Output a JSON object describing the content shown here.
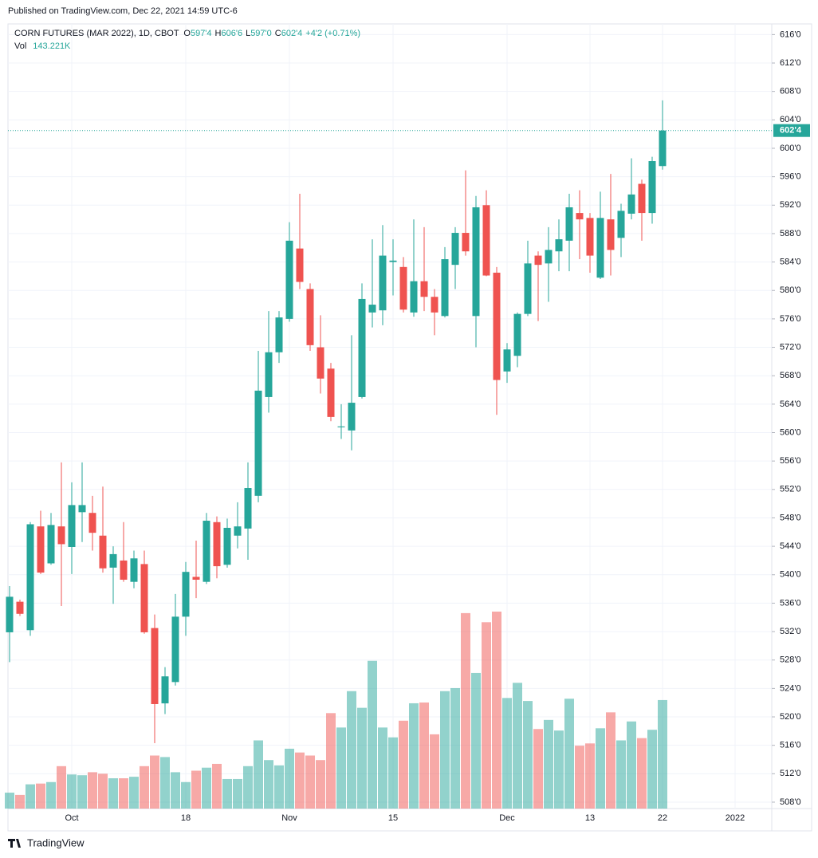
{
  "chart_data": {
    "type": "candlestick",
    "published": "Published on TradingView.com, Dec 22, 2021 14:59 UTC-6",
    "legend": {
      "symbol": "CORN FUTURES (MAR 2022), 1D, CBOT",
      "items": [
        {
          "key": "O",
          "label": "597'4"
        },
        {
          "key": "H",
          "label": "606'6"
        },
        {
          "key": "L",
          "label": "597'0"
        },
        {
          "key": "C",
          "label": "602'4"
        }
      ],
      "change": "+4'2 (+0.71%)"
    },
    "volume_title": "Vol",
    "volume_last_label": "143.221K",
    "brand": "TradingView",
    "up_color": "#26a69a",
    "down_color": "#ef5350",
    "grid": true,
    "categories": [
      null,
      null,
      null,
      null,
      null,
      null,
      "Oct",
      null,
      null,
      null,
      null,
      null,
      null,
      null,
      null,
      null,
      null,
      "18",
      null,
      null,
      null,
      null,
      null,
      null,
      null,
      null,
      null,
      "Nov",
      null,
      null,
      null,
      null,
      null,
      null,
      null,
      null,
      null,
      "15",
      null,
      null,
      null,
      null,
      null,
      null,
      null,
      null,
      null,
      null,
      "Dec",
      null,
      null,
      null,
      null,
      null,
      null,
      null,
      "13",
      null,
      null,
      null,
      null,
      null,
      null,
      "22"
    ],
    "future_label": "2022",
    "open": [
      531.9,
      536.2,
      532.2,
      546.8,
      541.6,
      546.8,
      543.9,
      548.8,
      548.7,
      545.5,
      541.0,
      542.0,
      539.0,
      541.5,
      532.5,
      521.9,
      524.9,
      534.1,
      539.7,
      539.0,
      547.4,
      541.4,
      545.5,
      546.5,
      551.1,
      565.0,
      571.3,
      576.0,
      585.9,
      580.2,
      572.0,
      569.0,
      560.75,
      560.3,
      565.0,
      576.9,
      577.2,
      584.0,
      583.3,
      576.9,
      581.3,
      579.1,
      576.4,
      583.6,
      588.1,
      576.4,
      592.0,
      582.5,
      568.6,
      570.8,
      576.7,
      584.9,
      583.8,
      585.5,
      587.0,
      590.9,
      590.2,
      581.8,
      590.0,
      587.4,
      590.8,
      595.0,
      590.9,
      597.5
    ],
    "high": [
      538.4,
      536.5,
      547.4,
      549.0,
      548.7,
      555.8,
      553.0,
      555.8,
      551.1,
      552.4,
      544.0,
      547.4,
      543.4,
      543.4,
      534.4,
      527.0,
      537.3,
      541.8,
      544.8,
      548.7,
      548.2,
      547.9,
      550.2,
      555.8,
      571.5,
      577.1,
      577.1,
      589.6,
      593.6,
      581.0,
      576.5,
      569.8,
      564.0,
      573.7,
      581.0,
      587.2,
      589.2,
      587.2,
      584.7,
      590.0,
      588.9,
      580.2,
      586.1,
      588.9,
      596.9,
      593.3,
      594.1,
      583.3,
      572.6,
      576.9,
      587.0,
      585.5,
      588.9,
      590.0,
      593.6,
      594.1,
      590.9,
      593.9,
      596.4,
      592.2,
      598.6,
      595.6,
      598.8,
      606.75
    ],
    "low": [
      527.7,
      534.2,
      531.4,
      540.1,
      541.4,
      535.6,
      540.1,
      544.6,
      543.4,
      540.3,
      535.9,
      539.0,
      538.1,
      531.7,
      516.3,
      520.4,
      524.4,
      531.4,
      536.7,
      538.7,
      539.5,
      541.0,
      543.7,
      542.1,
      550.2,
      562.8,
      569.8,
      575.6,
      580.2,
      571.5,
      565.5,
      561.6,
      559.1,
      557.5,
      564.8,
      574.8,
      575.1,
      579.3,
      576.9,
      576.3,
      577.1,
      573.7,
      576.2,
      580.2,
      584.9,
      572.0,
      582.0,
      562.5,
      567.0,
      569.2,
      576.4,
      575.7,
      578.4,
      582.7,
      582.7,
      584.4,
      582.5,
      581.6,
      582.1,
      584.7,
      590.0,
      587.0,
      589.4,
      597.0
    ],
    "close": [
      536.9,
      534.5,
      547.1,
      540.3,
      547.0,
      544.3,
      549.8,
      549.8,
      545.9,
      540.9,
      542.9,
      539.3,
      542.3,
      531.9,
      521.8,
      525.7,
      534.1,
      540.4,
      539.3,
      547.6,
      541.2,
      546.6,
      546.8,
      552.2,
      565.9,
      571.3,
      576.2,
      587.0,
      581.2,
      572.3,
      567.6,
      562.2,
      560.875,
      564.2,
      578.8,
      578.0,
      584.9,
      584.2,
      577.3,
      581.3,
      579.1,
      576.9,
      584.4,
      588.1,
      585.5,
      591.7,
      582.1,
      567.4,
      571.7,
      576.7,
      583.8,
      583.6,
      585.7,
      587.2,
      591.7,
      590.0,
      584.9,
      590.2,
      585.7,
      591.2,
      593.5,
      590.9,
      598.2,
      602.5
    ],
    "volume": [
      21,
      18,
      32,
      33,
      35,
      56,
      45,
      44,
      48,
      46,
      40,
      40,
      42,
      56,
      70,
      68,
      48,
      35,
      50,
      54,
      59,
      39,
      39,
      56,
      90,
      64,
      57,
      79,
      74,
      70,
      64,
      126,
      107,
      155,
      133,
      195,
      107,
      94,
      116,
      139,
      140,
      98,
      155,
      159,
      258,
      179,
      246,
      260,
      146,
      166,
      142,
      105,
      117,
      103,
      145,
      83,
      86,
      106,
      127,
      90,
      115,
      93,
      104,
      143.221
    ],
    "last_price": {
      "value": 602.5,
      "label": "602'4"
    },
    "ylim": [
      507.1,
      617.5
    ],
    "yticks": [
      {
        "value": 508,
        "label": "508'0"
      },
      {
        "value": 512,
        "label": "512'0"
      },
      {
        "value": 516,
        "label": "516'0"
      },
      {
        "value": 520,
        "label": "520'0"
      },
      {
        "value": 524,
        "label": "524'0"
      },
      {
        "value": 528,
        "label": "528'0"
      },
      {
        "value": 532,
        "label": "532'0"
      },
      {
        "value": 536,
        "label": "536'0"
      },
      {
        "value": 540,
        "label": "540'0"
      },
      {
        "value": 544,
        "label": "544'0"
      },
      {
        "value": 548,
        "label": "548'0"
      },
      {
        "value": 552,
        "label": "552'0"
      },
      {
        "value": 556,
        "label": "556'0"
      },
      {
        "value": 560,
        "label": "560'0"
      },
      {
        "value": 564,
        "label": "564'0"
      },
      {
        "value": 568,
        "label": "568'0"
      },
      {
        "value": 572,
        "label": "572'0"
      },
      {
        "value": 576,
        "label": "576'0"
      },
      {
        "value": 580,
        "label": "580'0"
      },
      {
        "value": 584,
        "label": "584'0"
      },
      {
        "value": 588,
        "label": "588'0"
      },
      {
        "value": 592,
        "label": "592'0"
      },
      {
        "value": 596,
        "label": "596'0"
      },
      {
        "value": 600,
        "label": "600'0"
      },
      {
        "value": 604,
        "label": "604'0"
      },
      {
        "value": 608,
        "label": "608'0"
      },
      {
        "value": 612,
        "label": "612'0"
      },
      {
        "value": 616,
        "label": "616'0"
      }
    ]
  }
}
